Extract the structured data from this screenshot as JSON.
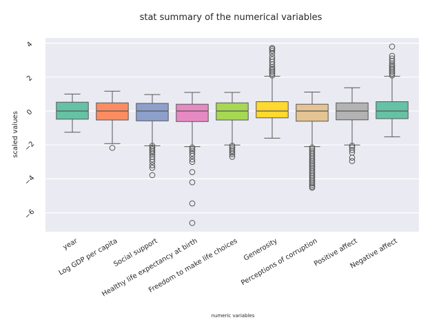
{
  "chart_data": {
    "type": "box",
    "title": "stat summary of the numerical variables",
    "xlabel": "numeric variables",
    "ylabel": "scaled values",
    "ylim": [
      -7.0,
      4.2
    ],
    "yticks": [
      -6,
      -4,
      -2,
      0,
      2,
      4
    ],
    "grid": true,
    "background": "#eaeaf2",
    "categories": [
      "year",
      "Log GDP per capita",
      "Social support",
      "Healthy life expectancy at birth",
      "Freedom to make life choices",
      "Generosity",
      "Perceptions of corruption",
      "Positive affect",
      "Negative affect"
    ],
    "boxes": [
      {
        "name": "year",
        "color": "#66c2a5",
        "whisker_low": -1.25,
        "q1": -0.48,
        "median": 0.0,
        "q3": 0.52,
        "whisker_high": 1.0,
        "outliers": []
      },
      {
        "name": "Log GDP per capita",
        "color": "#fc8d62",
        "whisker_low": -1.92,
        "q1": -0.53,
        "median": 0.0,
        "q3": 0.48,
        "whisker_high": 1.17,
        "outliers": [
          -2.17
        ]
      },
      {
        "name": "Social support",
        "color": "#8da0cb",
        "whisker_low": -2.05,
        "q1": -0.58,
        "median": 0.0,
        "q3": 0.45,
        "whisker_high": 0.97,
        "outliers": [
          -2.05,
          -2.15,
          -2.25,
          -2.35,
          -2.45,
          -2.55,
          -2.7,
          -2.85,
          -3.0,
          -3.2,
          -3.35,
          -3.78
        ]
      },
      {
        "name": "Healthy life expectancy at birth",
        "color": "#e78ac3",
        "whisker_low": -2.1,
        "q1": -0.62,
        "median": 0.0,
        "q3": 0.4,
        "whisker_high": 1.1,
        "outliers": [
          -2.15,
          -2.25,
          -2.35,
          -2.5,
          -2.65,
          -2.85,
          -3.0,
          -3.6,
          -4.2,
          -5.45,
          -6.6
        ]
      },
      {
        "name": "Freedom to make life choices",
        "color": "#a6d854",
        "whisker_low": -2.0,
        "q1": -0.53,
        "median": 0.0,
        "q3": 0.48,
        "whisker_high": 1.1,
        "outliers": [
          -2.05,
          -2.15,
          -2.25,
          -2.35,
          -2.45,
          -2.55,
          -2.7
        ]
      },
      {
        "name": "Generosity",
        "color": "#ffd92f",
        "whisker_low": -1.6,
        "q1": -0.4,
        "median": 0.0,
        "q3": 0.55,
        "whisker_high": 2.05,
        "outliers": [
          2.1,
          2.2,
          2.3,
          2.4,
          2.5,
          2.6,
          2.75,
          2.9,
          3.05,
          3.2,
          3.4,
          3.55,
          3.65,
          3.72
        ]
      },
      {
        "name": "Perceptions of corruption",
        "color": "#e5c494",
        "whisker_low": -2.1,
        "q1": -0.6,
        "median": 0.0,
        "q3": 0.4,
        "whisker_high": 1.12,
        "outliers": [
          -2.15,
          -2.25,
          -2.35,
          -2.45,
          -2.55,
          -2.65,
          -2.75,
          -2.85,
          -2.95,
          -3.05,
          -3.15,
          -3.25,
          -3.35,
          -3.45,
          -3.55,
          -3.65,
          -3.75,
          -3.85,
          -3.95,
          -4.05,
          -4.15,
          -4.25,
          -4.35,
          -4.45,
          -4.52
        ]
      },
      {
        "name": "Positive affect",
        "color": "#b3b3b3",
        "whisker_low": -2.0,
        "q1": -0.52,
        "median": 0.0,
        "q3": 0.48,
        "whisker_high": 1.37,
        "outliers": [
          -2.05,
          -2.15,
          -2.3,
          -2.45,
          -2.75,
          -2.95
        ]
      },
      {
        "name": "Negative affect",
        "color": "#66c2a5",
        "whisker_low": -1.52,
        "q1": -0.45,
        "median": 0.0,
        "q3": 0.55,
        "whisker_high": 2.05,
        "outliers": [
          2.1,
          2.2,
          2.3,
          2.4,
          2.5,
          2.6,
          2.7,
          2.8,
          2.95,
          3.1,
          3.25,
          3.8
        ]
      }
    ]
  }
}
